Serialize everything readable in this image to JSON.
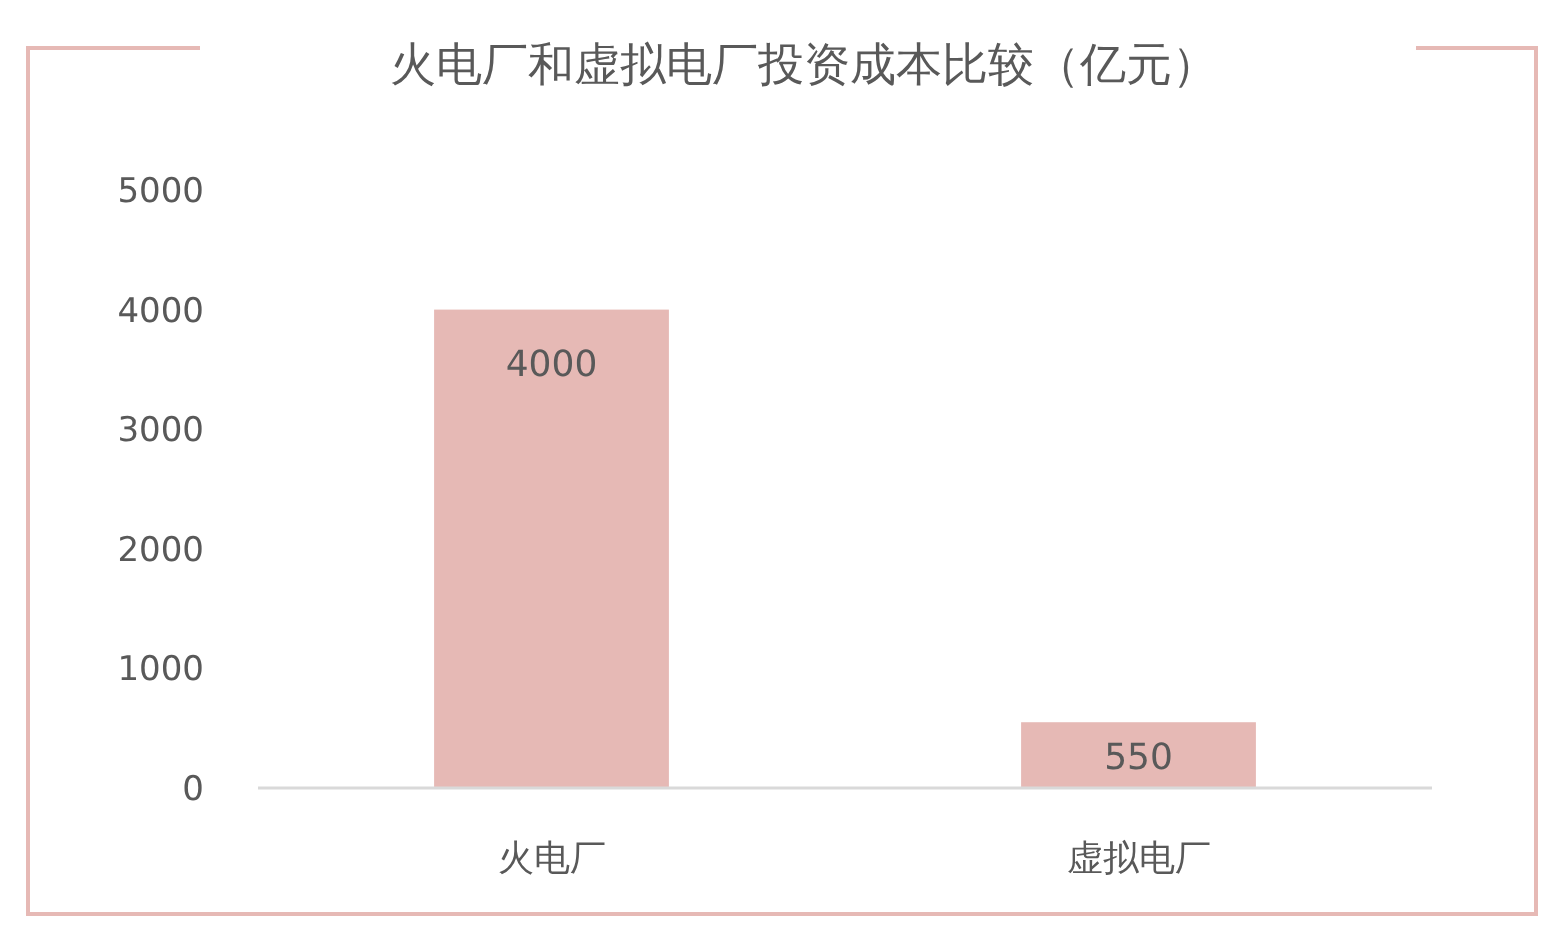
{
  "chart_data": {
    "type": "bar",
    "title": "火电厂和虚拟电厂投资成本比较（亿元）",
    "categories": [
      "火电厂",
      "虚拟电厂"
    ],
    "values": [
      4000,
      550
    ],
    "color": "#e6b9b5",
    "ylim": [
      0,
      5000
    ],
    "yticks": [
      0,
      1000,
      2000,
      3000,
      4000,
      5000
    ],
    "data_labels": true
  }
}
